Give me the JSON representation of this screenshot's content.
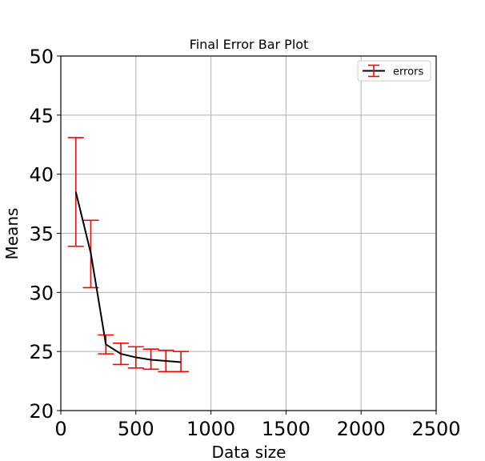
{
  "chart_data": {
    "type": "line",
    "title": "Final Error Bar Plot",
    "xlabel": "Data size",
    "ylabel": "Means",
    "xlim": [
      0,
      2500
    ],
    "ylim": [
      20,
      50
    ],
    "xticks": [
      0,
      500,
      1000,
      1500,
      2000,
      2500
    ],
    "yticks": [
      20,
      25,
      30,
      35,
      40,
      45,
      50
    ],
    "grid": true,
    "legend_position": "top-right",
    "colors": {
      "line": "#000000",
      "errorbar": "#ff0000",
      "grid": "#b0b0b0"
    },
    "series": [
      {
        "name": "errors",
        "x": [
          100,
          200,
          300,
          400,
          500,
          600,
          700,
          800
        ],
        "y": [
          38.5,
          33.3,
          25.6,
          24.8,
          24.5,
          24.3,
          24.2,
          24.1
        ],
        "yerr_low": [
          33.9,
          30.4,
          24.8,
          23.9,
          23.6,
          23.5,
          23.3,
          23.3
        ],
        "yerr_high": [
          43.1,
          36.1,
          26.4,
          25.7,
          25.4,
          25.2,
          25.1,
          25.0
        ]
      }
    ]
  }
}
